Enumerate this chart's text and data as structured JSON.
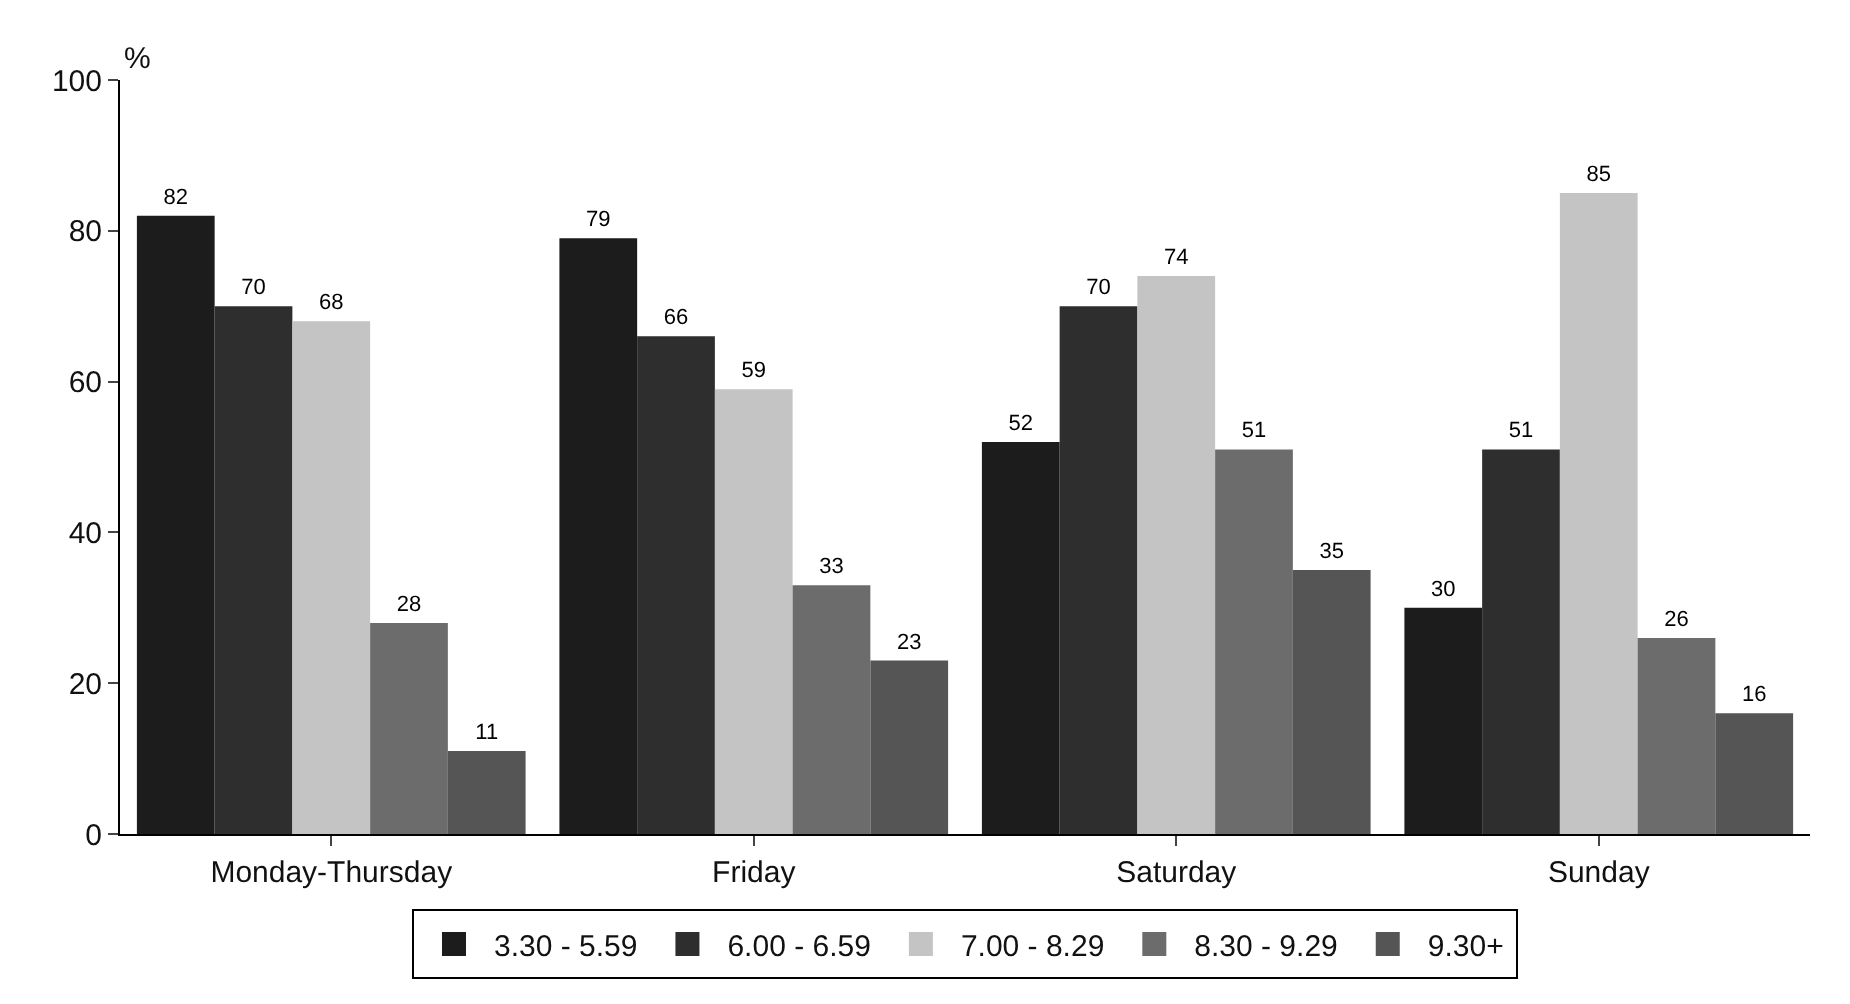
{
  "chart_data": {
    "type": "bar",
    "ylabel": "%",
    "categories": [
      "Monday-Thursday",
      "Friday",
      "Saturday",
      "Sunday"
    ],
    "series": [
      {
        "name": "3.30 - 5.59",
        "color": "#1c1c1c",
        "values": [
          82,
          79,
          52,
          30
        ]
      },
      {
        "name": "6.00 - 6.59",
        "color": "#2e2e2e",
        "values": [
          70,
          66,
          70,
          51
        ]
      },
      {
        "name": "7.00 - 8.29",
        "color": "#c4c4c4",
        "values": [
          68,
          59,
          74,
          85
        ]
      },
      {
        "name": "8.30 - 9.29",
        "color": "#6c6c6c",
        "values": [
          28,
          33,
          51,
          26
        ]
      },
      {
        "name": "9.30+",
        "color": "#555555",
        "values": [
          11,
          23,
          35,
          16
        ]
      }
    ],
    "ylim": [
      0,
      100
    ],
    "yticks": [
      0,
      20,
      40,
      60,
      80,
      100
    ],
    "grid": false,
    "legend": "bottom",
    "data_labels": true
  }
}
